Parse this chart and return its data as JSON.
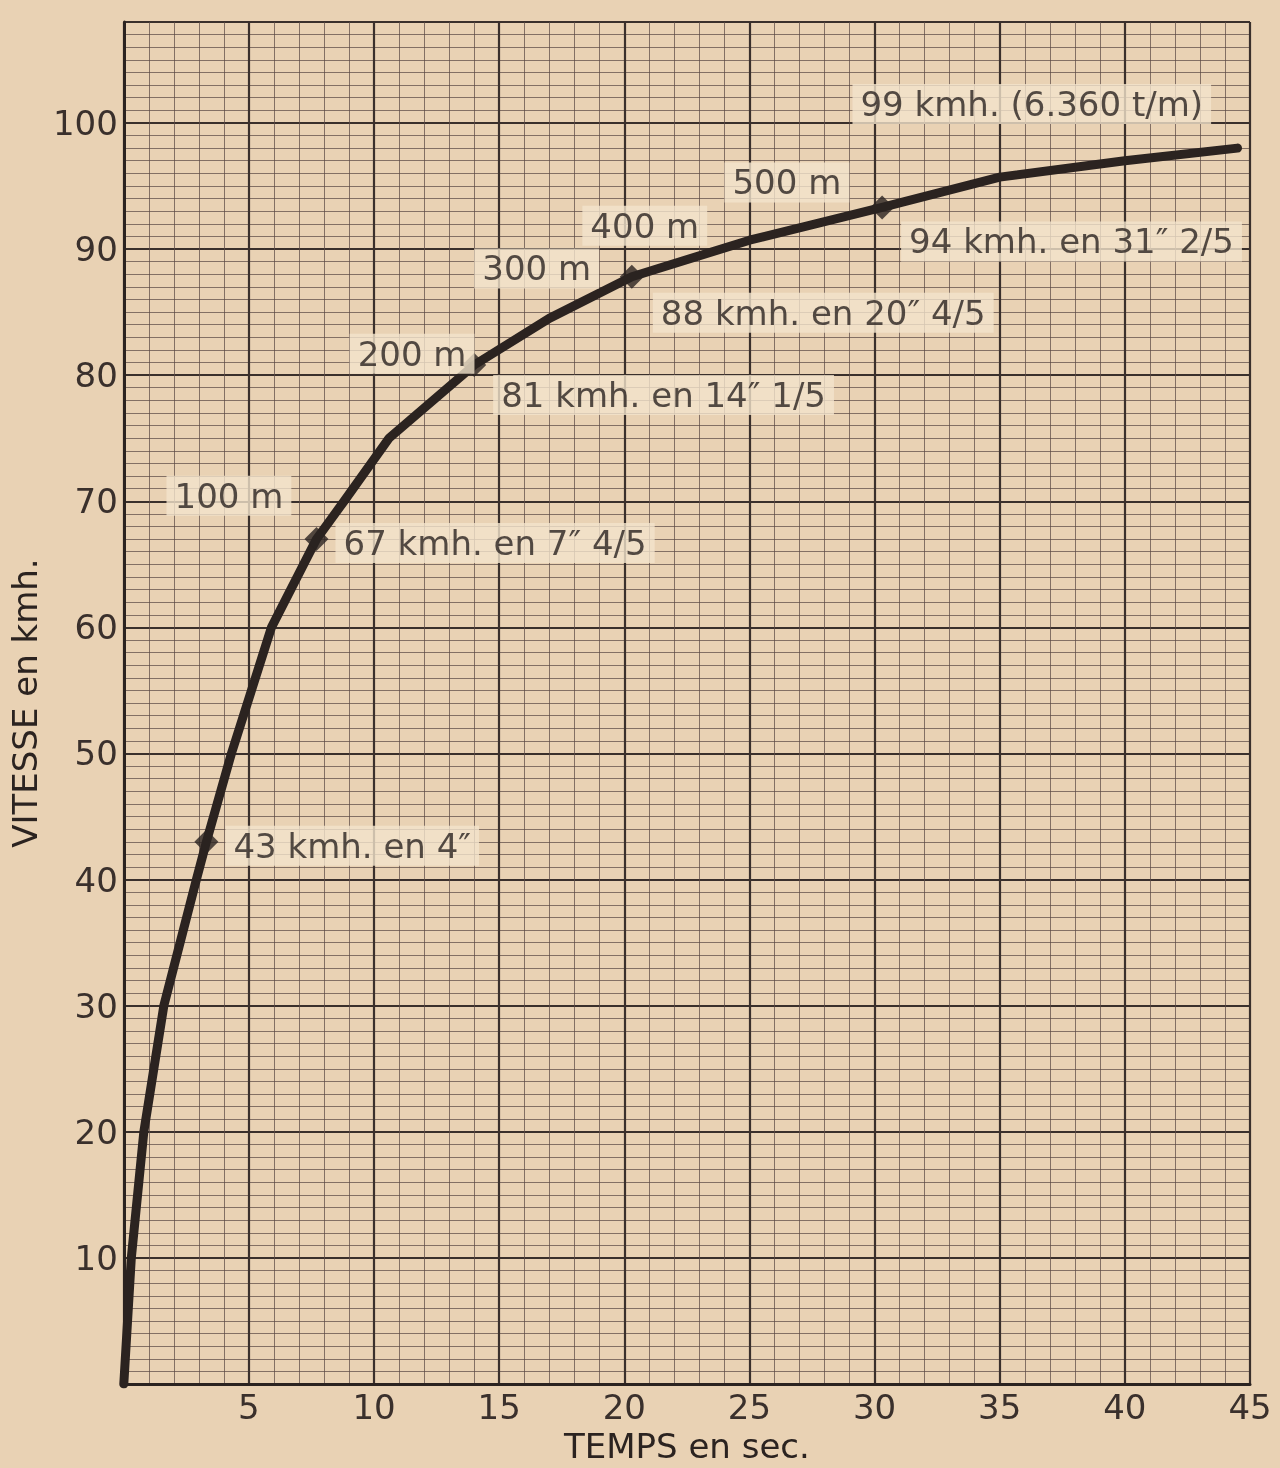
{
  "chart_data": {
    "type": "line",
    "xlabel": "TEMPS en sec.",
    "ylabel": "VITESSE en kmh.",
    "xlim": [
      0,
      45
    ],
    "xticks": [
      5,
      10,
      15,
      20,
      25,
      30,
      35,
      40,
      45
    ],
    "ylim": [
      0,
      108
    ],
    "yticks": [
      10,
      20,
      30,
      40,
      50,
      60,
      70,
      80,
      90,
      100
    ],
    "grid": true,
    "series": [
      {
        "color": "#2b2320",
        "marker": "none",
        "x": [
          0,
          0.3,
          0.8,
          1.6,
          2.9,
          3.3,
          4.3,
          5.9,
          7.7,
          8.8,
          10.6,
          14,
          17,
          20.3,
          25,
          30.3,
          35,
          40,
          44.5
        ],
        "values": [
          0,
          10,
          20,
          30,
          40,
          43,
          50,
          60,
          67,
          70,
          75,
          80.8,
          84.5,
          87.8,
          90.7,
          93.3,
          95.7,
          97,
          98
        ]
      },
      {
        "type": "scatter",
        "color": "#2b2320",
        "marker": "diamond",
        "x": [
          3.3,
          7.7,
          14,
          20.3,
          30.3
        ],
        "values": [
          43,
          67,
          80.8,
          87.8,
          93.3
        ]
      }
    ],
    "annotations": [
      {
        "text": "43 kmh. en 4″",
        "x": 3.3,
        "y": 43
      },
      {
        "text": "100 m",
        "x": 7.5,
        "y": 66
      },
      {
        "text": "67 kmh. en 7″ 4/5",
        "x": 7.7,
        "y": 67
      },
      {
        "text": "200 m",
        "x": 12.5,
        "y": 79
      },
      {
        "text": "81 kmh. en 14″ 1/5",
        "x": 14,
        "y": 80.8
      },
      {
        "text": "300 m",
        "x": 17,
        "y": 84.5
      },
      {
        "text": "88 kmh. en 20″ 4/5",
        "x": 20.3,
        "y": 87.8
      },
      {
        "text": "400 m",
        "x": 21.4,
        "y": 89
      },
      {
        "text": "500 m",
        "x": 25.4,
        "y": 91
      },
      {
        "text": "94 kmh. en 31″ 2/5",
        "x": 30.3,
        "y": 93.3
      },
      {
        "text": "99 kmh. (6.360 t/m)",
        "x": 44.5,
        "y": 98
      }
    ]
  }
}
